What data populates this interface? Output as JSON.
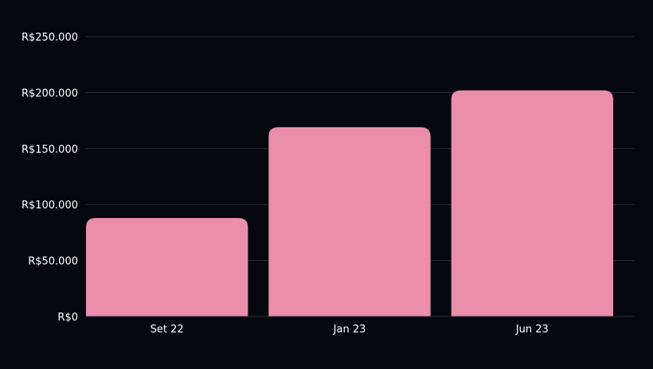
{
  "colors": {
    "background": "#05070f",
    "bar": "#ea8eab",
    "grid": "#2a2d3a",
    "text": "#ffffff"
  },
  "chart_data": {
    "type": "bar",
    "title": "",
    "xlabel": "",
    "ylabel": "",
    "categories": [
      "Set 22",
      "Jan 23",
      "Jun 23"
    ],
    "values": [
      88000,
      169000,
      202000
    ],
    "ylim": [
      0,
      250000
    ],
    "yticks": [
      0,
      50000,
      100000,
      150000,
      200000,
      250000
    ],
    "ytick_labels": [
      "R$0",
      "R$50.000",
      "R$100.000",
      "R$150.000",
      "R$200.000",
      "R$250.000"
    ],
    "grid": true,
    "legend": "none"
  }
}
